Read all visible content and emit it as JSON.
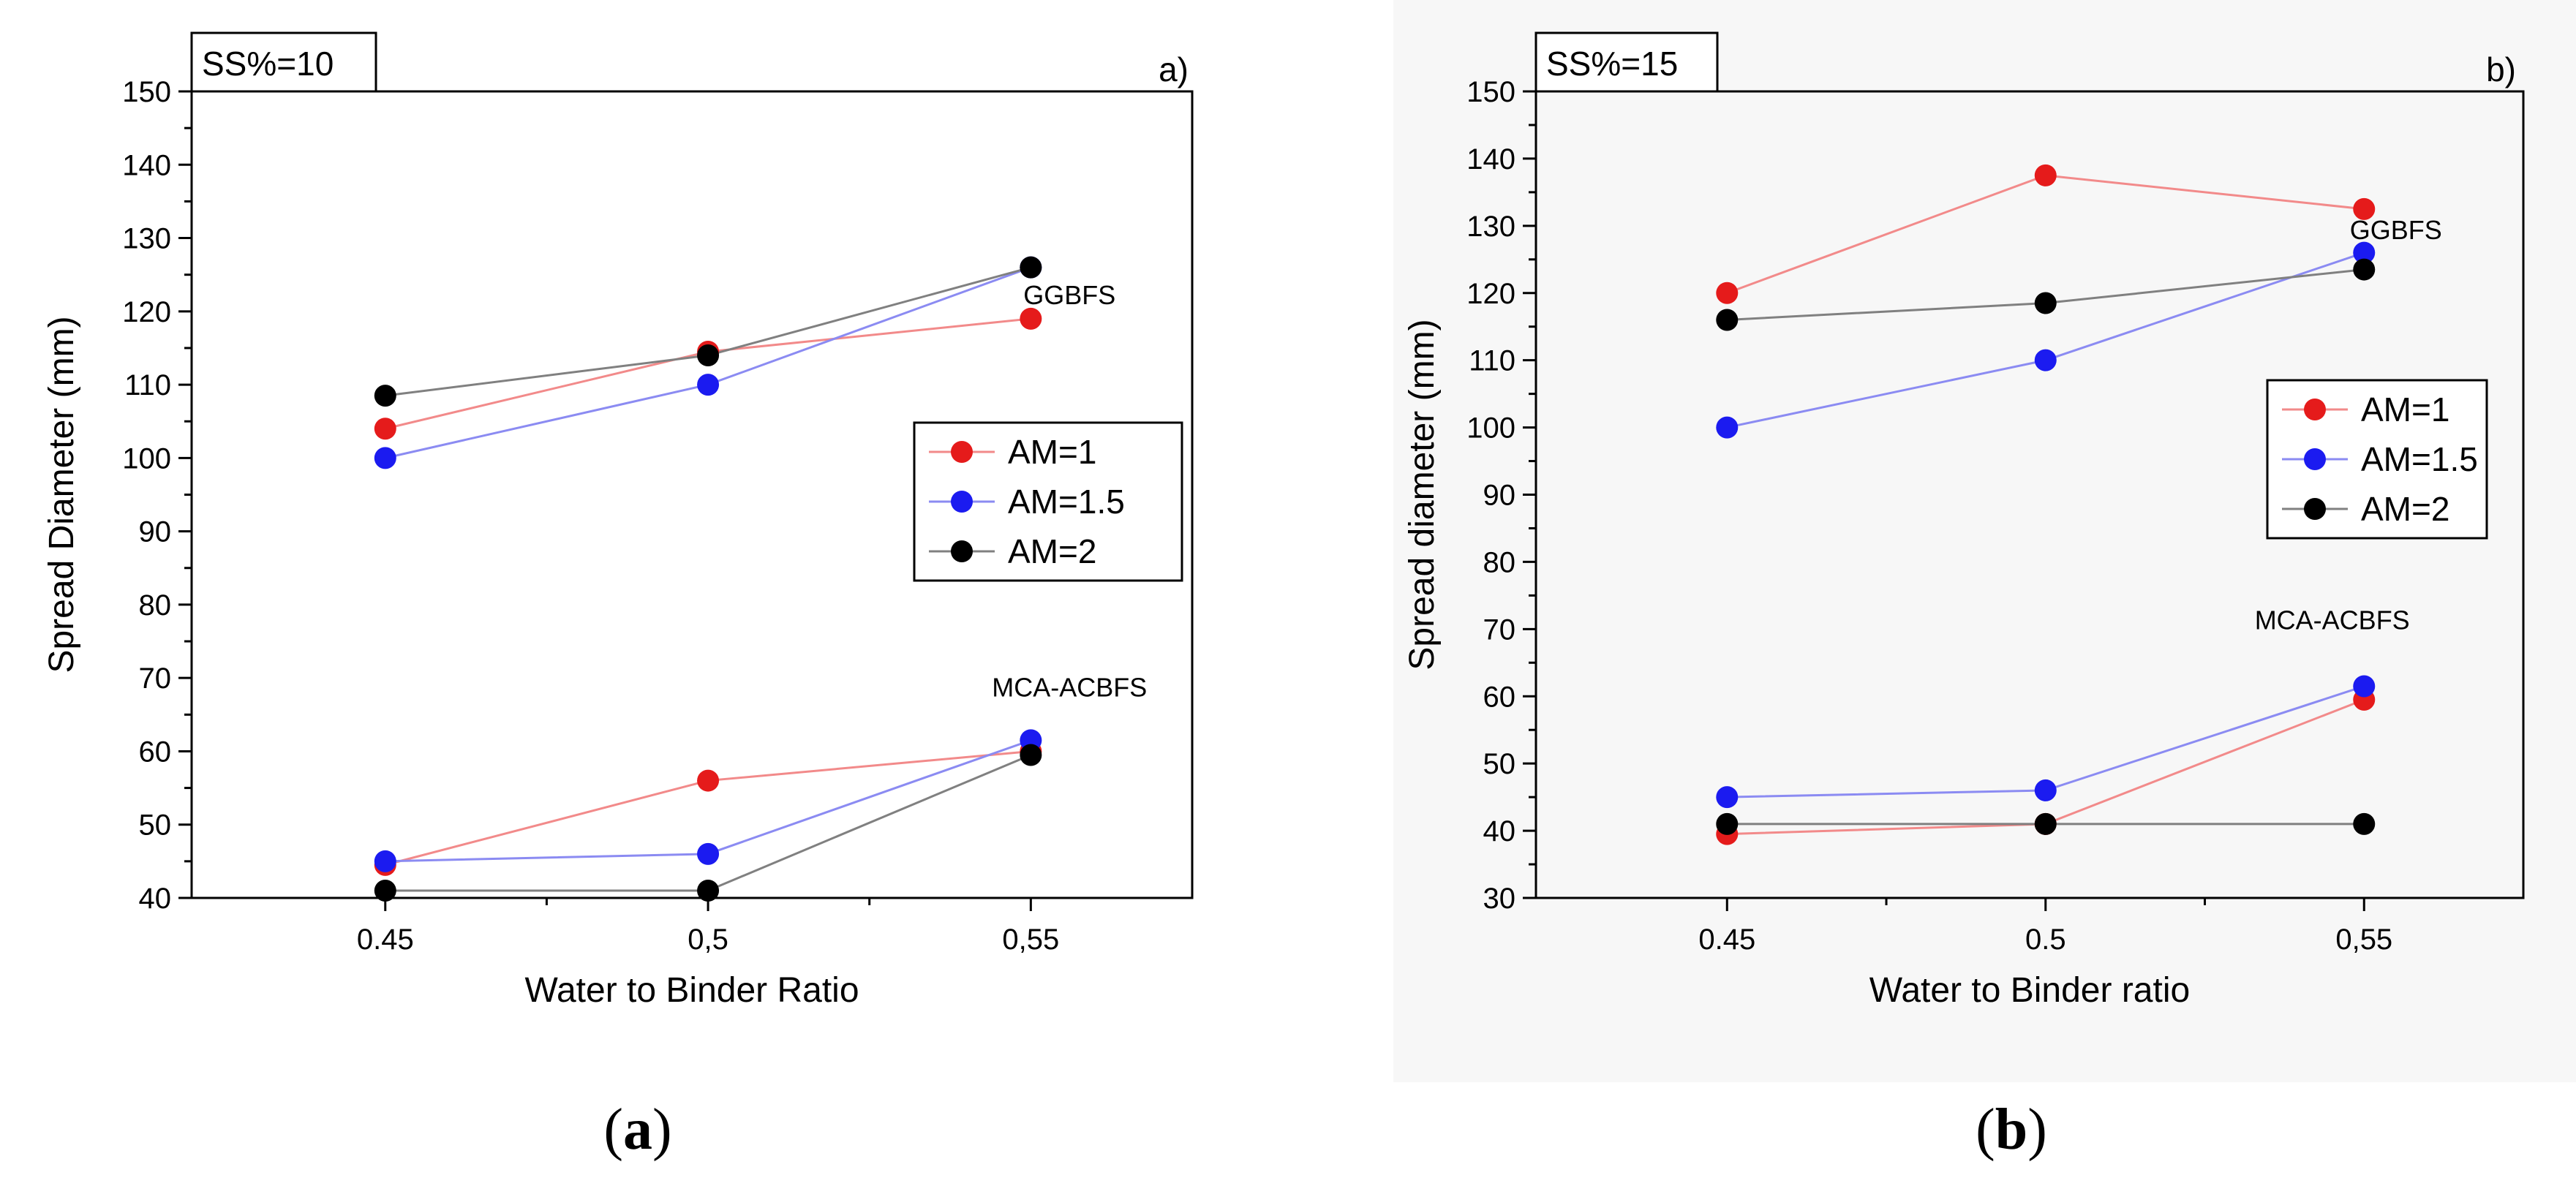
{
  "chart_data": [
    {
      "type": "line",
      "panel_label": "a)",
      "condition_label": "SS%=10",
      "caption_letter": "a",
      "xlabel": "Water to Binder Ratio",
      "ylabel": "Spread Diameter (mm)",
      "x": [
        0.45,
        0.5,
        0.55
      ],
      "xtick_labels": [
        "0.45",
        "0,5",
        "0,55"
      ],
      "xlim": [
        0.42,
        0.575
      ],
      "ylim": [
        40,
        150
      ],
      "yticks": [
        40,
        50,
        60,
        70,
        80,
        90,
        100,
        110,
        120,
        130,
        140,
        150
      ],
      "group_labels": [
        {
          "text": "GGBFS",
          "x": 0.556,
          "y": 121
        },
        {
          "text": "MCA-ACBFS",
          "x": 0.556,
          "y": 67.5
        }
      ],
      "legend": [
        "AM=1",
        "AM=1.5",
        "AM=2"
      ],
      "series": [
        {
          "name": "AM=1",
          "group": "GGBFS",
          "color": "#e51b1b",
          "line": "#f28a8a",
          "values": [
            104,
            114.5,
            119
          ]
        },
        {
          "name": "AM=1.5",
          "group": "GGBFS",
          "color": "#1b1bf0",
          "line": "#8b8bf2",
          "values": [
            100,
            110,
            126
          ]
        },
        {
          "name": "AM=2",
          "group": "GGBFS",
          "color": "#000000",
          "line": "#808080",
          "values": [
            108.5,
            114,
            126
          ]
        },
        {
          "name": "AM=1",
          "group": "MCA-ACBFS",
          "color": "#e51b1b",
          "line": "#f28a8a",
          "values": [
            44.5,
            56,
            60
          ]
        },
        {
          "name": "AM=1.5",
          "group": "MCA-ACBFS",
          "color": "#1b1bf0",
          "line": "#8b8bf2",
          "values": [
            45,
            46,
            61.5
          ]
        },
        {
          "name": "AM=2",
          "group": "MCA-ACBFS",
          "color": "#000000",
          "line": "#808080",
          "values": [
            41,
            41,
            59.5
          ]
        }
      ]
    },
    {
      "type": "line",
      "panel_label": "b)",
      "condition_label": "SS%=15",
      "caption_letter": "b",
      "xlabel": "Water to Binder ratio",
      "ylabel": "Spread diameter (mm)",
      "x": [
        0.45,
        0.5,
        0.55
      ],
      "xtick_labels": [
        "0.45",
        "0.5",
        "0,55"
      ],
      "xlim": [
        0.42,
        0.575
      ],
      "ylim": [
        30,
        150
      ],
      "yticks": [
        30,
        40,
        50,
        60,
        70,
        80,
        90,
        100,
        110,
        120,
        130,
        140,
        150
      ],
      "group_labels": [
        {
          "text": "GGBFS",
          "x": 0.555,
          "y": 128
        },
        {
          "text": "MCA-ACBFS",
          "x": 0.545,
          "y": 70
        }
      ],
      "legend": [
        "AM=1",
        "AM=1.5",
        "AM=2"
      ],
      "series": [
        {
          "name": "AM=1",
          "group": "GGBFS",
          "color": "#e51b1b",
          "line": "#f28a8a",
          "values": [
            120,
            137.5,
            132.5
          ]
        },
        {
          "name": "AM=1.5",
          "group": "GGBFS",
          "color": "#1b1bf0",
          "line": "#8b8bf2",
          "values": [
            100,
            110,
            126
          ]
        },
        {
          "name": "AM=2",
          "group": "GGBFS",
          "color": "#000000",
          "line": "#808080",
          "values": [
            116,
            118.5,
            123.5
          ]
        },
        {
          "name": "AM=1",
          "group": "MCA-ACBFS",
          "color": "#e51b1b",
          "line": "#f28a8a",
          "values": [
            39.5,
            41,
            59.5
          ]
        },
        {
          "name": "AM=1.5",
          "group": "MCA-ACBFS",
          "color": "#1b1bf0",
          "line": "#8b8bf2",
          "values": [
            45,
            46,
            61.5
          ]
        },
        {
          "name": "AM=2",
          "group": "MCA-ACBFS",
          "color": "#000000",
          "line": "#808080",
          "values": [
            41,
            41,
            41
          ]
        }
      ]
    }
  ]
}
